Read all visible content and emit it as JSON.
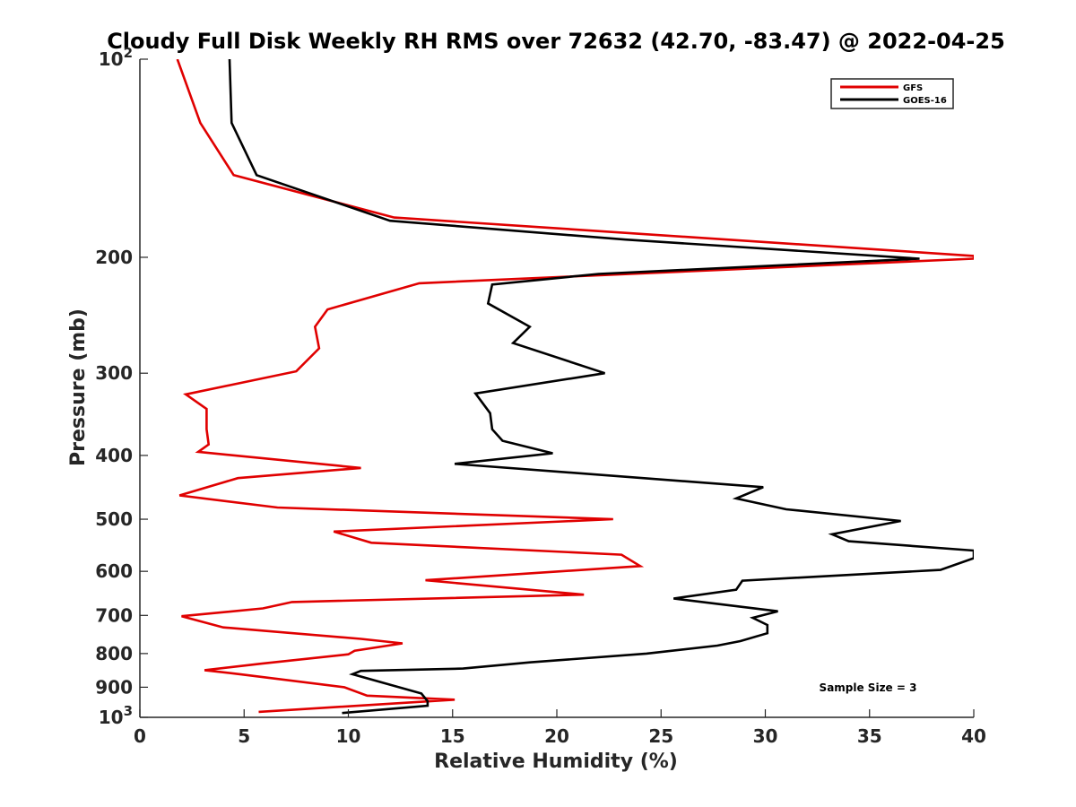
{
  "chart_data": {
    "type": "line",
    "title": "Cloudy Full Disk Weekly RH RMS over 72632 (42.70, -83.47) @ 2022-04-25",
    "xlabel": "Relative Humidity (%)",
    "ylabel": "Pressure (mb)",
    "xlim": [
      0,
      40
    ],
    "ylim": [
      100,
      1000
    ],
    "y_scale": "log",
    "y_reversed": true,
    "x_ticks": [
      0,
      5,
      10,
      15,
      20,
      25,
      30,
      35,
      40
    ],
    "y_ticks": [
      {
        "value": 100,
        "label": "10",
        "sup": "2"
      },
      {
        "value": 200,
        "label": "200",
        "sup": ""
      },
      {
        "value": 300,
        "label": "300",
        "sup": ""
      },
      {
        "value": 400,
        "label": "400",
        "sup": ""
      },
      {
        "value": 500,
        "label": "500",
        "sup": ""
      },
      {
        "value": 600,
        "label": "600",
        "sup": ""
      },
      {
        "value": 700,
        "label": "700",
        "sup": ""
      },
      {
        "value": 800,
        "label": "800",
        "sup": ""
      },
      {
        "value": 900,
        "label": "900",
        "sup": ""
      },
      {
        "value": 1000,
        "label": "10",
        "sup": "3"
      }
    ],
    "legend_position": "top-right",
    "grid": false,
    "annotation": "Sample Size = 3",
    "series": [
      {
        "name": "GFS",
        "color": "#e00000",
        "points": [
          [
            1.8,
            100
          ],
          [
            2.9,
            125
          ],
          [
            4.5,
            150
          ],
          [
            12.2,
            174
          ],
          [
            40.0,
            199
          ],
          [
            40.0,
            201
          ],
          [
            13.4,
            219
          ],
          [
            9.0,
            240
          ],
          [
            8.4,
            255
          ],
          [
            8.6,
            275
          ],
          [
            7.5,
            298
          ],
          [
            2.2,
            323
          ],
          [
            3.2,
            340
          ],
          [
            3.2,
            365
          ],
          [
            3.3,
            385
          ],
          [
            2.8,
            395
          ],
          [
            10.6,
            418
          ],
          [
            4.7,
            433
          ],
          [
            1.9,
            460
          ],
          [
            6.6,
            480
          ],
          [
            22.7,
            500
          ],
          [
            9.3,
            522
          ],
          [
            11.1,
            543
          ],
          [
            23.1,
            566
          ],
          [
            24.0,
            589
          ],
          [
            13.7,
            619
          ],
          [
            21.3,
            651
          ],
          [
            7.3,
            668
          ],
          [
            5.9,
            683
          ],
          [
            2.0,
            702
          ],
          [
            4.0,
            730
          ],
          [
            10.6,
            760
          ],
          [
            12.6,
            772
          ],
          [
            10.3,
            792
          ],
          [
            10.0,
            802
          ],
          [
            5.8,
            829
          ],
          [
            3.1,
            848
          ],
          [
            4.8,
            860
          ],
          [
            9.8,
            900
          ],
          [
            10.9,
            927
          ],
          [
            15.1,
            940
          ],
          [
            5.7,
            981
          ]
        ]
      },
      {
        "name": "GOES-16",
        "color": "#000000",
        "points": [
          [
            4.3,
            100
          ],
          [
            4.4,
            125
          ],
          [
            5.6,
            150
          ],
          [
            12.0,
            176
          ],
          [
            23.3,
            188
          ],
          [
            37.4,
            201
          ],
          [
            22.0,
            212
          ],
          [
            16.9,
            220
          ],
          [
            16.7,
            235
          ],
          [
            18.7,
            255
          ],
          [
            17.9,
            270
          ],
          [
            22.3,
            300
          ],
          [
            16.1,
            322
          ],
          [
            16.8,
            345
          ],
          [
            16.9,
            365
          ],
          [
            17.4,
            380
          ],
          [
            19.8,
            397
          ],
          [
            15.1,
            412
          ],
          [
            29.9,
            447
          ],
          [
            28.6,
            465
          ],
          [
            31.0,
            483
          ],
          [
            36.5,
            503
          ],
          [
            33.2,
            527
          ],
          [
            34.0,
            540
          ],
          [
            40.0,
            558
          ],
          [
            40.0,
            573
          ],
          [
            38.4,
            597
          ],
          [
            28.9,
            620
          ],
          [
            28.6,
            640
          ],
          [
            25.6,
            660
          ],
          [
            30.6,
            690
          ],
          [
            29.4,
            706
          ],
          [
            30.1,
            724
          ],
          [
            30.1,
            745
          ],
          [
            28.8,
            766
          ],
          [
            27.7,
            778
          ],
          [
            24.3,
            800
          ],
          [
            18.7,
            825
          ],
          [
            15.5,
            843
          ],
          [
            10.6,
            850
          ],
          [
            10.2,
            860
          ],
          [
            13.5,
            920
          ],
          [
            13.8,
            945
          ],
          [
            13.8,
            960
          ],
          [
            9.7,
            985
          ]
        ]
      }
    ]
  }
}
